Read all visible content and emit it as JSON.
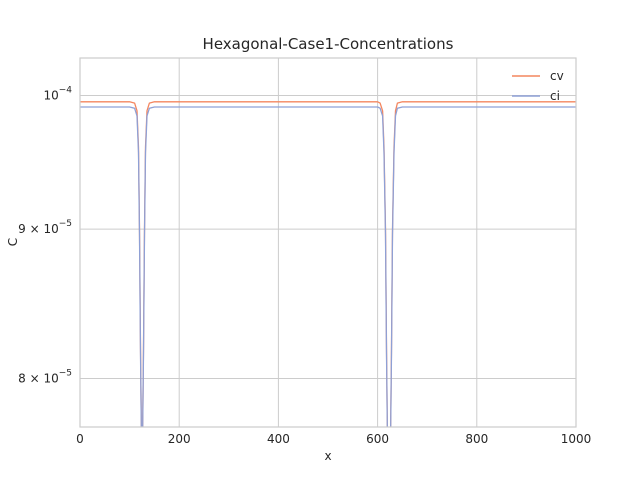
{
  "chart_data": {
    "type": "line",
    "title": "Hexagonal-Case1-Concentrations",
    "xlabel": "x",
    "ylabel": "C",
    "xlim": [
      0,
      1000
    ],
    "ylim": [
      7.7e-05,
      0.000103
    ],
    "y_scale": "log",
    "grid": true,
    "legend_position": "top-right",
    "x_ticks": [
      {
        "value": 0,
        "label": "0"
      },
      {
        "value": 200,
        "label": "200"
      },
      {
        "value": 400,
        "label": "400"
      },
      {
        "value": 600,
        "label": "600"
      },
      {
        "value": 800,
        "label": "800"
      },
      {
        "value": 1000,
        "label": "1000"
      }
    ],
    "y_ticks": [
      {
        "value": 0.0001,
        "base": "10",
        "exp": "−4",
        "label": "10^-4"
      },
      {
        "value": 9e-05,
        "base": "9 × 10",
        "exp": "−5",
        "label": "9×10^-5"
      },
      {
        "value": 8e-05,
        "base": "8 × 10",
        "exp": "−5",
        "label": "8×10^-5"
      }
    ],
    "x": [
      0,
      100,
      110,
      115,
      118,
      120,
      122,
      124,
      126,
      128,
      130,
      132,
      135,
      140,
      150,
      600,
      605,
      610,
      613,
      616,
      618,
      620,
      622,
      624,
      626,
      628,
      630,
      633,
      636,
      640,
      650,
      1000
    ],
    "series": [
      {
        "name": "cv",
        "color": "#f4865f",
        "values": [
          9.95e-05,
          9.95e-05,
          9.94e-05,
          9.88e-05,
          9.6e-05,
          9e-05,
          8.2e-05,
          7.6e-05,
          7.6e-05,
          8.2e-05,
          9e-05,
          9.6e-05,
          9.88e-05,
          9.94e-05,
          9.95e-05,
          9.95e-05,
          9.94e-05,
          9.88e-05,
          9.6e-05,
          9e-05,
          8.2e-05,
          7.6e-05,
          7.6e-05,
          7.6e-05,
          7.6e-05,
          8.2e-05,
          9e-05,
          9.6e-05,
          9.88e-05,
          9.94e-05,
          9.95e-05,
          9.95e-05
        ]
      },
      {
        "name": "ci",
        "color": "#8ea0d6",
        "values": [
          9.91e-05,
          9.91e-05,
          9.9e-05,
          9.84e-05,
          9.56e-05,
          8.96e-05,
          8.16e-05,
          7.6e-05,
          7.6e-05,
          8.16e-05,
          8.96e-05,
          9.56e-05,
          9.84e-05,
          9.9e-05,
          9.91e-05,
          9.91e-05,
          9.9e-05,
          9.84e-05,
          9.56e-05,
          8.96e-05,
          8.16e-05,
          7.6e-05,
          7.6e-05,
          7.6e-05,
          7.6e-05,
          8.16e-05,
          8.96e-05,
          9.56e-05,
          9.84e-05,
          9.9e-05,
          9.91e-05,
          9.91e-05
        ]
      }
    ]
  }
}
